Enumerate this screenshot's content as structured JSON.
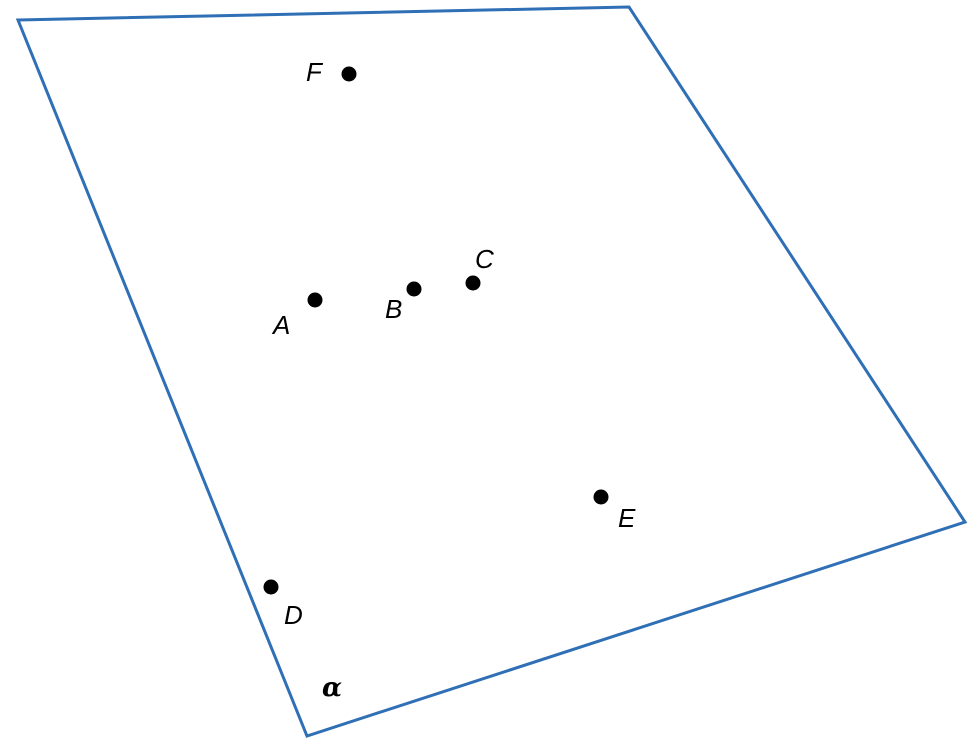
{
  "plane": {
    "label": "α",
    "edge_color": "#2f6fb5"
  },
  "points": {
    "F": "F",
    "A": "A",
    "B": "B",
    "C": "C",
    "E": "E",
    "D": "D"
  }
}
